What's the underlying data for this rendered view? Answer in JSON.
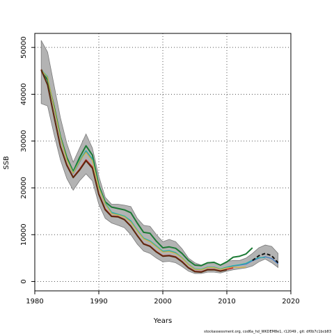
{
  "chart_data": {
    "type": "line",
    "xlabel": "Years",
    "ylabel": "SSB",
    "xlim": [
      1980,
      2020
    ],
    "ylim": [
      -2000,
      53000
    ],
    "x_ticks": [
      "1980",
      "1990",
      "2000",
      "2010",
      "2020"
    ],
    "y_ticks": [
      "0",
      "10000",
      "20000",
      "30000",
      "40000",
      "50000"
    ],
    "grid": true,
    "footer": "stockassessment.org, cod6a_hd_WKDEM8e1, r12049 , git: df0b7c1bcb83",
    "band": {
      "x": [
        1981,
        1982,
        1983,
        1984,
        1985,
        1986,
        1987,
        1988,
        1989,
        1990,
        1991,
        1992,
        1993,
        1994,
        1995,
        1996,
        1997,
        1998,
        1999,
        2000,
        2001,
        2002,
        2003,
        2004,
        2005,
        2006,
        2007,
        2008,
        2009,
        2010,
        2011,
        2012,
        2013,
        2014,
        2015,
        2016,
        2017,
        2018
      ],
      "upper": [
        51500,
        49000,
        42000,
        35000,
        29500,
        25500,
        28500,
        31500,
        28500,
        22500,
        18000,
        16500,
        16500,
        16300,
        16000,
        13500,
        12000,
        11800,
        10000,
        8500,
        9000,
        8500,
        7000,
        5000,
        4000,
        3500,
        4000,
        4200,
        3500,
        4300,
        4500,
        4500,
        5000,
        6000,
        7200,
        7800,
        7500,
        6000
      ],
      "lower": [
        38000,
        37500,
        31500,
        26000,
        22000,
        19500,
        21500,
        23000,
        21500,
        16500,
        13500,
        12500,
        12000,
        11500,
        10000,
        8000,
        6500,
        6000,
        5000,
        4200,
        4300,
        4000,
        3200,
        2200,
        1700,
        1700,
        2000,
        2000,
        1800,
        2200,
        2500,
        2700,
        2900,
        3300,
        4200,
        4800,
        4000,
        3000
      ]
    },
    "series": [
      {
        "x": [
          1981,
          1982,
          1983,
          1984,
          1985,
          1986,
          1987,
          1988,
          1989,
          1990,
          1991,
          1992,
          1993,
          1994,
          1995,
          1996,
          1997,
          1998,
          1999,
          2000,
          2001,
          2002,
          2003,
          2004,
          2005,
          2006,
          2007,
          2008,
          2009,
          2010,
          2011,
          2012,
          2013,
          2014
        ],
        "values": [
          45300,
          43000,
          37500,
          31000,
          26500,
          23500,
          26500,
          29000,
          27000,
          20500,
          17000,
          15900,
          15600,
          15300,
          14700,
          12500,
          10500,
          10300,
          8600,
          7200,
          7400,
          7100,
          6000,
          4500,
          3500,
          3400,
          4000,
          4100,
          3500,
          4200,
          5200,
          5400,
          5900,
          7200
        ],
        "color": "#1b7a34",
        "width": 2
      },
      {
        "x": [
          1981,
          1982,
          1983,
          1984,
          1985,
          1986,
          1987,
          1988,
          1989,
          1990,
          1991,
          1992,
          1993,
          1994,
          1995,
          1996,
          1997,
          1998,
          1999,
          2000,
          2001,
          2002,
          2003,
          2004,
          2005,
          2006,
          2007,
          2008,
          2009,
          2010,
          2011,
          2012,
          2013,
          2014,
          2015,
          2016,
          2017,
          2018
        ],
        "values": [
          45000,
          43500,
          37000,
          30500,
          26000,
          23000,
          25500,
          27800,
          26000,
          20000,
          16500,
          14600,
          14300,
          13900,
          12800,
          10900,
          9200,
          8600,
          7500,
          6400,
          6500,
          6100,
          5000,
          3600,
          2600,
          2500,
          3000,
          3000,
          2600,
          3000,
          3300,
          3500,
          3700,
          4400,
          5000,
          5300,
          4900,
          3800
        ],
        "color": "#3a78c9",
        "width": 1.2
      },
      {
        "x": [
          1981,
          1982,
          1983,
          1984,
          1985,
          1986,
          1987,
          1988,
          1989,
          1990,
          1991,
          1992,
          1993,
          1994,
          1995,
          1996,
          1997,
          1998,
          1999,
          2000,
          2001,
          2002,
          2003,
          2004,
          2005,
          2006,
          2007,
          2008,
          2009,
          2010,
          2011,
          2012,
          2013,
          2014,
          2015,
          2016
        ],
        "values": [
          45200,
          43800,
          37300,
          30900,
          26100,
          23300,
          25900,
          28000,
          26200,
          20200,
          16800,
          14800,
          14400,
          14000,
          13000,
          11000,
          9300,
          8700,
          7600,
          6500,
          6600,
          6200,
          5100,
          3700,
          2700,
          2600,
          3100,
          3100,
          2700,
          3100,
          3400,
          3600,
          3900,
          4600,
          5100,
          5100
        ],
        "color": "#2ab5a5",
        "width": 1.2
      },
      {
        "x": [
          1981,
          1982,
          1983,
          1984,
          1985,
          1986,
          1987,
          1988,
          1989,
          1990,
          1991,
          1992,
          1993,
          1994,
          1995,
          1996,
          1997,
          1998,
          1999,
          2000,
          2001,
          2002,
          2003,
          2004,
          2005,
          2006,
          2007,
          2008,
          2009,
          2010,
          2011,
          2012,
          2013
        ],
        "values": [
          45100,
          43600,
          37200,
          30700,
          26000,
          23100,
          25700,
          27600,
          25800,
          20000,
          16600,
          14500,
          14200,
          13800,
          12700,
          10800,
          9100,
          8500,
          7400,
          6300,
          6400,
          6000,
          5000,
          3600,
          2600,
          2500,
          3000,
          3000,
          2600,
          2900,
          3100,
          3000,
          3100
        ],
        "color": "#d4b33a",
        "width": 1.2
      },
      {
        "x": [
          1981,
          1982,
          1983,
          1984,
          1985,
          1986,
          1987,
          1988,
          1989,
          1990,
          1991,
          1992,
          1993,
          1994,
          1995,
          1996,
          1997,
          1998,
          1999,
          2000,
          2001,
          2002,
          2003,
          2004,
          2005,
          2006,
          2007,
          2008,
          2009,
          2010,
          2011
        ],
        "values": [
          45300,
          42000,
          35500,
          29000,
          25000,
          22300,
          24000,
          26000,
          24500,
          18800,
          15500,
          14000,
          13900,
          13300,
          11900,
          9900,
          8100,
          7600,
          6400,
          5500,
          5600,
          5300,
          4300,
          3000,
          2200,
          2100,
          2600,
          2600,
          2300,
          2600,
          2900
        ],
        "color": "#cc1f1f",
        "width": 1.5
      },
      {
        "x": [
          1981,
          1982,
          1983,
          1984,
          1985,
          1986,
          1987,
          1988,
          1989,
          1990,
          1991,
          1992,
          1993,
          1994,
          1995,
          1996,
          1997,
          1998,
          1999,
          2000,
          2001,
          2002,
          2003,
          2004,
          2005,
          2006,
          2007,
          2008,
          2009,
          2010
        ],
        "values": [
          45200,
          42000,
          35300,
          28800,
          24800,
          22200,
          23800,
          25800,
          24200,
          18600,
          15300,
          13900,
          13800,
          13200,
          11800,
          9800,
          8000,
          7500,
          6300,
          5400,
          5500,
          5200,
          4200,
          2900,
          2100,
          2000,
          2500,
          2500,
          2200,
          2500
        ],
        "color": "#5a2a10",
        "width": 2
      },
      {
        "x": [
          2014,
          2015,
          2016,
          2017,
          2018
        ],
        "values": [
          4500,
          5500,
          6000,
          5500,
          4000
        ],
        "color": "#101010",
        "width": 2,
        "dash": "5,3"
      }
    ]
  }
}
